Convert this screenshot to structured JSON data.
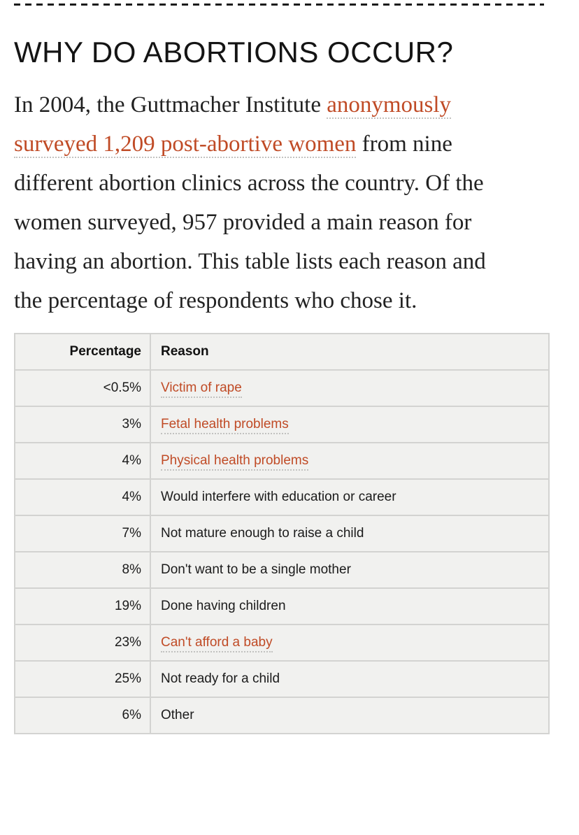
{
  "heading": "WHY DO ABORTIONS OCCUR?",
  "paragraph": {
    "before_link": "In 2004, the Guttmacher Institute ",
    "link_text": "anonymously surveyed 1,209 post-abortive women",
    "after_link": " from nine different abortion clinics across the country. Of the women surveyed, 957 provided a main reason for having an abortion. This table lists each reason and the percentage of respondents who chose it."
  },
  "table": {
    "headers": [
      "Percentage",
      "Reason"
    ],
    "rows": [
      {
        "percentage": "<0.5%",
        "reason": "Victim of rape",
        "is_link": true
      },
      {
        "percentage": "3%",
        "reason": "Fetal health problems",
        "is_link": true
      },
      {
        "percentage": "4%",
        "reason": "Physical health problems",
        "is_link": true
      },
      {
        "percentage": "4%",
        "reason": "Would interfere with education or career",
        "is_link": false
      },
      {
        "percentage": "7%",
        "reason": "Not mature enough to raise a child",
        "is_link": false
      },
      {
        "percentage": "8%",
        "reason": "Don't want to be a single mother",
        "is_link": false
      },
      {
        "percentage": "19%",
        "reason": "Done having children",
        "is_link": false
      },
      {
        "percentage": "23%",
        "reason": "Can't afford a baby",
        "is_link": true
      },
      {
        "percentage": "25%",
        "reason": "Not ready for a child",
        "is_link": false
      },
      {
        "percentage": "6%",
        "reason": "Other",
        "is_link": false
      }
    ]
  },
  "colors": {
    "link": "#c04b26",
    "body_text": "#1e1e1e",
    "table_background": "#f1f1ef",
    "table_border": "#d3d3d1",
    "divider": "#1a1a1a",
    "dotted_underline": "#c2c2c0"
  }
}
